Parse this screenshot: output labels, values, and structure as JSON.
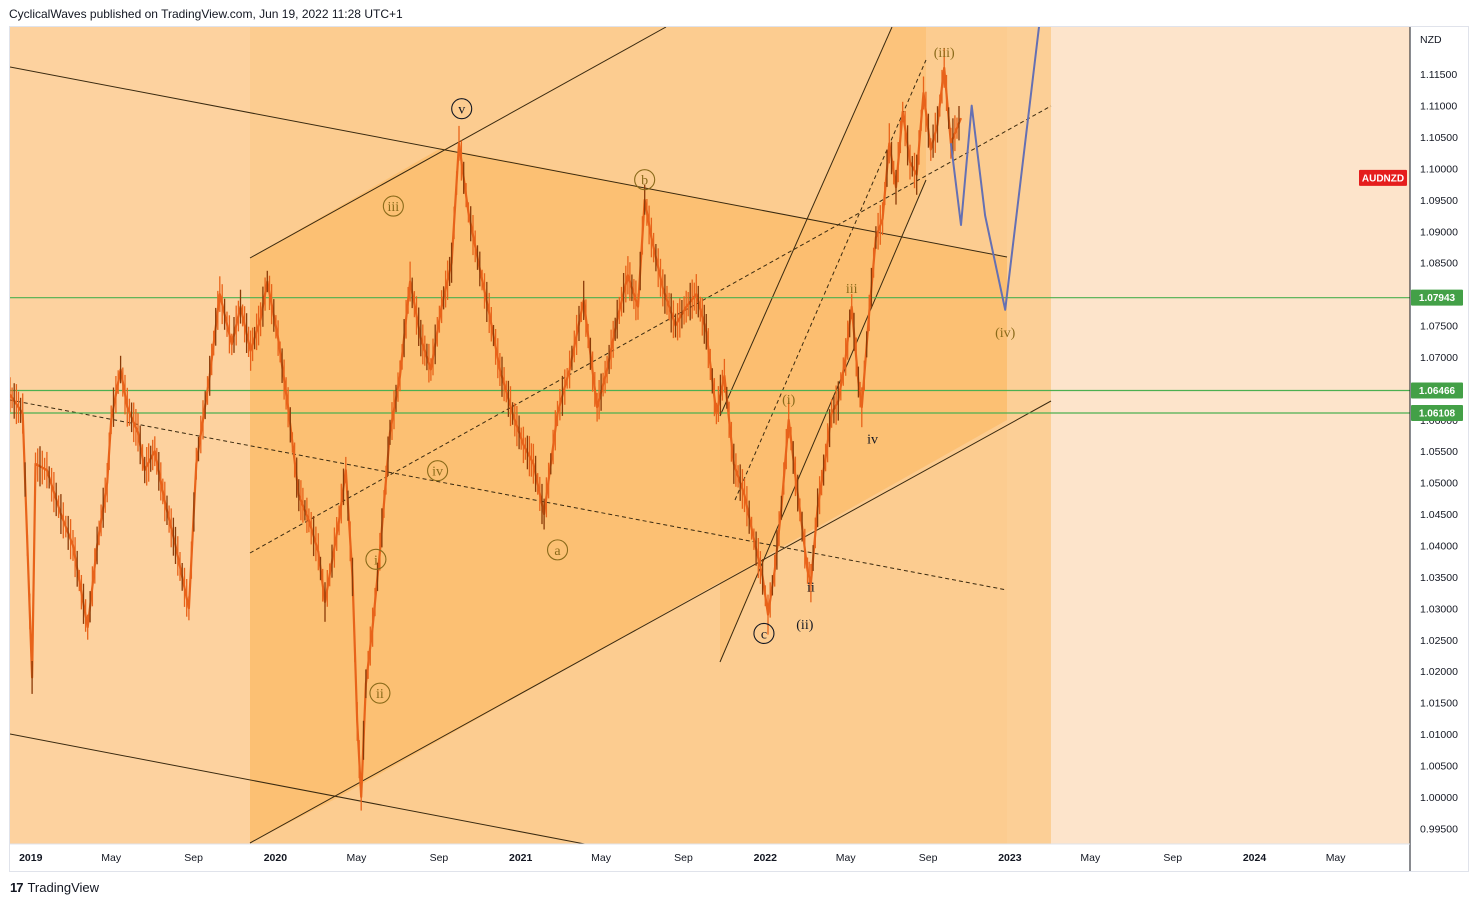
{
  "header": {
    "text": "CyclicalWaves published on TradingView.com, Jun 19, 2022 11:28 UTC+1"
  },
  "footer": {
    "brand": "TradingView",
    "logo_glyph": "17"
  },
  "chart_data": {
    "type": "line",
    "symbol": "AUDNZD",
    "currency": "NZD",
    "y_range": [
      0.9925,
      1.1225
    ],
    "x_range": [
      "2018-12-01",
      "2024-08-20"
    ],
    "y_ticks": [
      "1.11500",
      "1.11000",
      "1.10500",
      "1.10000",
      "1.09500",
      "1.09000",
      "1.08500",
      "1.08000",
      "1.07500",
      "1.07000",
      "1.06500",
      "1.06000",
      "1.05500",
      "1.05000",
      "1.04500",
      "1.04000",
      "1.03500",
      "1.03000",
      "1.02500",
      "1.02000",
      "1.01500",
      "1.01000",
      "1.00500",
      "1.00000",
      "0.99500"
    ],
    "x_ticks": [
      {
        "label": "2019",
        "date": "2019-01-01",
        "bold": true
      },
      {
        "label": "May",
        "date": "2019-05-01",
        "bold": false
      },
      {
        "label": "Sep",
        "date": "2019-09-01",
        "bold": false
      },
      {
        "label": "2020",
        "date": "2020-01-01",
        "bold": true
      },
      {
        "label": "May",
        "date": "2020-05-01",
        "bold": false
      },
      {
        "label": "Sep",
        "date": "2020-09-01",
        "bold": false
      },
      {
        "label": "2021",
        "date": "2021-01-01",
        "bold": true
      },
      {
        "label": "May",
        "date": "2021-05-01",
        "bold": false
      },
      {
        "label": "Sep",
        "date": "2021-09-01",
        "bold": false
      },
      {
        "label": "2022",
        "date": "2022-01-01",
        "bold": true
      },
      {
        "label": "May",
        "date": "2022-05-01",
        "bold": false
      },
      {
        "label": "Sep",
        "date": "2022-09-01",
        "bold": false
      },
      {
        "label": "2023",
        "date": "2023-01-01",
        "bold": true
      },
      {
        "label": "May",
        "date": "2023-05-01",
        "bold": false
      },
      {
        "label": "Sep",
        "date": "2023-09-01",
        "bold": false
      },
      {
        "label": "2024",
        "date": "2024-01-01",
        "bold": true
      },
      {
        "label": "May",
        "date": "2024-05-01",
        "bold": false
      }
    ],
    "price_path": [
      [
        "2018-12-01",
        1.064
      ],
      [
        "2018-12-20",
        1.061
      ],
      [
        "2019-01-03",
        1.019
      ],
      [
        "2019-01-08",
        1.053
      ],
      [
        "2019-01-25",
        1.052
      ],
      [
        "2019-02-15",
        1.045
      ],
      [
        "2019-03-05",
        1.04
      ],
      [
        "2019-03-27",
        1.027
      ],
      [
        "2019-04-10",
        1.04
      ],
      [
        "2019-04-25",
        1.05
      ],
      [
        "2019-05-01",
        1.06
      ],
      [
        "2019-05-15",
        1.068
      ],
      [
        "2019-05-25",
        1.062
      ],
      [
        "2019-06-10",
        1.058
      ],
      [
        "2019-06-20",
        1.052
      ],
      [
        "2019-07-05",
        1.055
      ],
      [
        "2019-07-20",
        1.047
      ],
      [
        "2019-08-05",
        1.04
      ],
      [
        "2019-08-25",
        1.03
      ],
      [
        "2019-09-05",
        1.053
      ],
      [
        "2019-09-25",
        1.067
      ],
      [
        "2019-10-10",
        1.08
      ],
      [
        "2019-10-28",
        1.072
      ],
      [
        "2019-11-10",
        1.078
      ],
      [
        "2019-11-25",
        1.071
      ],
      [
        "2019-12-10",
        1.076
      ],
      [
        "2019-12-20",
        1.082
      ],
      [
        "2020-01-05",
        1.073
      ],
      [
        "2020-01-20",
        1.062
      ],
      [
        "2020-02-05",
        1.048
      ],
      [
        "2020-02-20",
        1.044
      ],
      [
        "2020-03-05",
        1.039
      ],
      [
        "2020-03-15",
        1.031
      ],
      [
        "2020-04-05",
        1.044
      ],
      [
        "2020-04-15",
        1.052
      ],
      [
        "2020-04-25",
        1.035
      ],
      [
        "2020-05-02",
        1.012
      ],
      [
        "2020-05-08",
        1.0
      ],
      [
        "2020-05-15",
        1.018
      ],
      [
        "2020-05-25",
        1.027
      ],
      [
        "2020-06-05",
        1.039
      ],
      [
        "2020-06-20",
        1.058
      ],
      [
        "2020-07-05",
        1.067
      ],
      [
        "2020-07-20",
        1.082
      ],
      [
        "2020-08-05",
        1.073
      ],
      [
        "2020-08-20",
        1.068
      ],
      [
        "2020-09-05",
        1.078
      ],
      [
        "2020-09-20",
        1.085
      ],
      [
        "2020-10-01",
        1.104
      ],
      [
        "2020-10-15",
        1.093
      ],
      [
        "2020-11-01",
        1.084
      ],
      [
        "2020-11-15",
        1.077
      ],
      [
        "2020-12-01",
        1.068
      ],
      [
        "2020-12-20",
        1.061
      ],
      [
        "2021-01-05",
        1.056
      ],
      [
        "2021-01-20",
        1.053
      ],
      [
        "2021-02-05",
        1.045
      ],
      [
        "2021-02-25",
        1.061
      ],
      [
        "2021-03-15",
        1.068
      ],
      [
        "2021-04-05",
        1.079
      ],
      [
        "2021-04-25",
        1.062
      ],
      [
        "2021-05-10",
        1.068
      ],
      [
        "2021-05-25",
        1.076
      ],
      [
        "2021-06-10",
        1.083
      ],
      [
        "2021-06-25",
        1.078
      ],
      [
        "2021-07-05",
        1.095
      ],
      [
        "2021-07-15",
        1.089
      ],
      [
        "2021-08-01",
        1.081
      ],
      [
        "2021-08-20",
        1.075
      ],
      [
        "2021-09-05",
        1.078
      ],
      [
        "2021-09-20",
        1.08
      ],
      [
        "2021-10-05",
        1.074
      ],
      [
        "2021-10-20",
        1.061
      ],
      [
        "2021-11-01",
        1.067
      ],
      [
        "2021-11-15",
        1.053
      ],
      [
        "2021-12-01",
        1.048
      ],
      [
        "2021-12-15",
        1.041
      ],
      [
        "2021-12-28",
        1.035
      ],
      [
        "2022-01-05",
        1.029
      ],
      [
        "2022-01-15",
        1.036
      ],
      [
        "2022-01-25",
        1.046
      ],
      [
        "2022-02-05",
        1.06
      ],
      [
        "2022-02-15",
        1.051
      ],
      [
        "2022-02-25",
        1.043
      ],
      [
        "2022-03-05",
        1.036
      ],
      [
        "2022-03-10",
        1.034
      ],
      [
        "2022-03-20",
        1.046
      ],
      [
        "2022-04-01",
        1.054
      ],
      [
        "2022-04-10",
        1.061
      ],
      [
        "2022-04-20",
        1.063
      ],
      [
        "2022-05-01",
        1.07
      ],
      [
        "2022-05-10",
        1.078
      ],
      [
        "2022-05-20",
        1.066
      ],
      [
        "2022-05-25",
        1.062
      ],
      [
        "2022-06-05",
        1.077
      ],
      [
        "2022-06-15",
        1.089
      ],
      [
        "2022-06-25",
        1.092
      ],
      [
        "2022-07-05",
        1.104
      ],
      [
        "2022-07-15",
        1.097
      ],
      [
        "2022-07-25",
        1.109
      ],
      [
        "2022-08-05",
        1.101
      ],
      [
        "2022-08-15",
        1.099
      ],
      [
        "2022-08-25",
        1.112
      ],
      [
        "2022-09-05",
        1.103
      ],
      [
        "2022-09-15",
        1.107
      ],
      [
        "2022-09-25",
        1.116
      ],
      [
        "2022-10-05",
        1.104
      ],
      [
        "2022-10-20",
        1.108
      ]
    ],
    "projection": [
      [
        "2022-10-05",
        1.104
      ],
      [
        "2022-10-20",
        1.091
      ],
      [
        "2022-11-05",
        1.11
      ],
      [
        "2022-11-25",
        1.0925
      ],
      [
        "2022-12-25",
        1.0775
      ],
      [
        "2023-02-15",
        1.124
      ]
    ],
    "horizontal_levels": [
      {
        "value": 1.07943,
        "label": "1.07943"
      },
      {
        "value": 1.06466,
        "label": "1.06466"
      },
      {
        "value": 1.06108,
        "label": "1.06108"
      }
    ],
    "symbol_tag": {
      "text": "AUDNZD",
      "value": 1.0985
    },
    "wave_labels": [
      {
        "text": "v",
        "date": "2020-10-05",
        "value": 1.1095,
        "circled": true,
        "color": "#131722"
      },
      {
        "text": "iii",
        "date": "2020-06-25",
        "value": 1.094,
        "circled": true,
        "color": "#8a6a1a"
      },
      {
        "text": "b",
        "date": "2021-07-05",
        "value": 1.0982,
        "circled": true,
        "color": "#8a6a1a"
      },
      {
        "text": "iv",
        "date": "2020-08-30",
        "value": 1.0519,
        "circled": true,
        "color": "#8a6a1a"
      },
      {
        "text": "i",
        "date": "2020-05-30",
        "value": 1.0378,
        "circled": true,
        "color": "#8a6a1a"
      },
      {
        "text": "ii",
        "date": "2020-06-05",
        "value": 1.0165,
        "circled": true,
        "color": "#8a6a1a"
      },
      {
        "text": "a",
        "date": "2021-02-25",
        "value": 1.0393,
        "circled": true,
        "color": "#8a6a1a"
      },
      {
        "text": "c",
        "date": "2021-12-30",
        "value": 1.026,
        "circled": true,
        "color": "#131722"
      },
      {
        "text": "(i)",
        "date": "2022-02-05",
        "value": 1.0633,
        "circled": false,
        "color": "#8a6a1a"
      },
      {
        "text": "(ii)",
        "date": "2022-03-01",
        "value": 1.0275,
        "circled": false,
        "color": "#131722"
      },
      {
        "text": "ii",
        "date": "2022-03-10",
        "value": 1.0335,
        "circled": false,
        "color": "#131722"
      },
      {
        "text": "iii",
        "date": "2022-05-10",
        "value": 1.081,
        "circled": false,
        "color": "#8a6a1a"
      },
      {
        "text": "iv",
        "date": "2022-06-10",
        "value": 1.057,
        "circled": false,
        "color": "#131722"
      },
      {
        "text": "(iii)",
        "date": "2022-09-25",
        "value": 1.1185,
        "circled": false,
        "color": "#8a6a1a"
      },
      {
        "text": "(iv)",
        "date": "2022-12-25",
        "value": 1.074,
        "circled": false,
        "color": "#8a6a1a"
      }
    ],
    "colors": {
      "background": "#fde4cb",
      "band_mid": "#fccc90",
      "band_inner": "#fbbd6e",
      "candles": "#e8631a",
      "projection": "#6570b3",
      "level_line": "#4caf50",
      "level_tag": "#43a047",
      "symbol_tag": "#e51d1d"
    }
  }
}
